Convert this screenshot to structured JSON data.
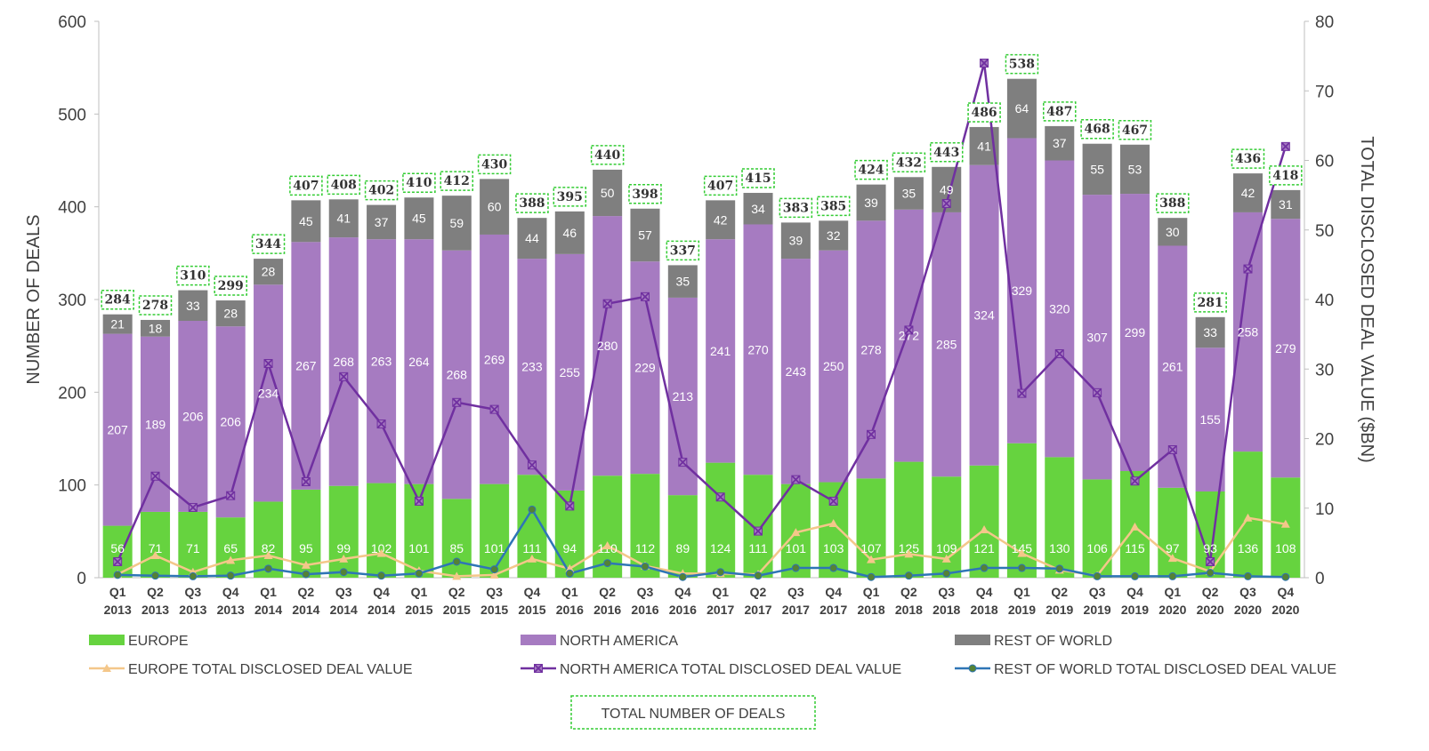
{
  "colors": {
    "europe": "#66d33f",
    "north_america": "#a67bc1",
    "rest_of_world": "#7f7f7f",
    "europe_line": "#f4c78a",
    "north_america_line": "#7030a0",
    "rest_of_world_line": "#2e75b6",
    "total_box": "#33cc33"
  },
  "chart_data": {
    "type": "bar",
    "stacked": true,
    "categories": [
      {
        "q": "Q1",
        "y": "2013"
      },
      {
        "q": "Q2",
        "y": "2013"
      },
      {
        "q": "Q3",
        "y": "2013"
      },
      {
        "q": "Q4",
        "y": "2013"
      },
      {
        "q": "Q1",
        "y": "2014"
      },
      {
        "q": "Q2",
        "y": "2014"
      },
      {
        "q": "Q3",
        "y": "2014"
      },
      {
        "q": "Q4",
        "y": "2014"
      },
      {
        "q": "Q1",
        "y": "2015"
      },
      {
        "q": "Q2",
        "y": "2015"
      },
      {
        "q": "Q3",
        "y": "2015"
      },
      {
        "q": "Q4",
        "y": "2015"
      },
      {
        "q": "Q1",
        "y": "2016"
      },
      {
        "q": "Q2",
        "y": "2016"
      },
      {
        "q": "Q3",
        "y": "2016"
      },
      {
        "q": "Q4",
        "y": "2016"
      },
      {
        "q": "Q1",
        "y": "2017"
      },
      {
        "q": "Q2",
        "y": "2017"
      },
      {
        "q": "Q3",
        "y": "2017"
      },
      {
        "q": "Q4",
        "y": "2017"
      },
      {
        "q": "Q1",
        "y": "2018"
      },
      {
        "q": "Q2",
        "y": "2018"
      },
      {
        "q": "Q3",
        "y": "2018"
      },
      {
        "q": "Q4",
        "y": "2018"
      },
      {
        "q": "Q1",
        "y": "2019"
      },
      {
        "q": "Q2",
        "y": "2019"
      },
      {
        "q": "Q3",
        "y": "2019"
      },
      {
        "q": "Q4",
        "y": "2019"
      },
      {
        "q": "Q1",
        "y": "2020"
      },
      {
        "q": "Q2",
        "y": "2020"
      },
      {
        "q": "Q3",
        "y": "2020"
      },
      {
        "q": "Q4",
        "y": "2020"
      }
    ],
    "bar_series": [
      {
        "name": "EUROPE",
        "color_key": "europe",
        "values": [
          56,
          71,
          71,
          65,
          82,
          95,
          99,
          102,
          101,
          85,
          101,
          111,
          94,
          110,
          112,
          89,
          124,
          111,
          101,
          103,
          107,
          125,
          109,
          121,
          145,
          130,
          106,
          115,
          97,
          93,
          136,
          108
        ]
      },
      {
        "name": "NORTH AMERICA",
        "color_key": "north_america",
        "values": [
          207,
          189,
          206,
          206,
          234,
          267,
          268,
          263,
          264,
          268,
          269,
          233,
          255,
          280,
          229,
          213,
          241,
          270,
          243,
          250,
          278,
          272,
          285,
          324,
          329,
          320,
          307,
          299,
          261,
          155,
          258,
          279
        ]
      },
      {
        "name": "REST OF WORLD",
        "color_key": "rest_of_world",
        "values": [
          21,
          18,
          33,
          28,
          28,
          45,
          41,
          37,
          45,
          59,
          60,
          44,
          46,
          50,
          57,
          35,
          42,
          34,
          39,
          32,
          39,
          35,
          49,
          41,
          64,
          37,
          55,
          53,
          30,
          33,
          42,
          31
        ]
      }
    ],
    "totals_name": "TOTAL NUMBER OF DEALS",
    "totals": [
      284,
      278,
      310,
      299,
      344,
      407,
      408,
      402,
      410,
      412,
      430,
      388,
      395,
      440,
      398,
      337,
      407,
      415,
      383,
      385,
      424,
      432,
      443,
      486,
      538,
      487,
      468,
      467,
      388,
      281,
      436,
      418
    ],
    "line_series": [
      {
        "name": "EUROPE TOTAL DISCLOSED DEAL VALUE",
        "color_key": "europe_line",
        "marker": "triangle",
        "values": [
          0.5,
          3.2,
          0.8,
          2.5,
          3.2,
          1.8,
          2.7,
          3.5,
          1.0,
          0.2,
          0.4,
          2.7,
          1.3,
          4.6,
          1.7,
          0.6,
          0.6,
          0.5,
          6.5,
          7.8,
          2.6,
          3.4,
          2.7,
          6.9,
          3.5,
          1.1,
          0.3,
          7.3,
          2.8,
          0.9,
          8.6,
          7.7
        ]
      },
      {
        "name": "NORTH AMERICA TOTAL DISCLOSED DEAL VALUE",
        "color_key": "north_america_line",
        "marker": "x",
        "values": [
          2.3,
          14.6,
          10.1,
          11.8,
          30.8,
          13.8,
          28.9,
          22.1,
          11.0,
          25.2,
          24.2,
          16.2,
          10.3,
          39.4,
          40.4,
          16.6,
          11.6,
          6.7,
          14.1,
          11.0,
          20.6,
          35.6,
          53.8,
          74.0,
          26.5,
          32.2,
          26.6,
          13.9,
          18.4,
          2.3,
          44.4,
          62.0
        ]
      },
      {
        "name": "REST OF WORLD TOTAL DISCLOSED DEAL VALUE",
        "color_key": "rest_of_world_line",
        "marker": "circle",
        "values": [
          0.4,
          0.3,
          0.2,
          0.3,
          1.3,
          0.5,
          0.8,
          0.3,
          0.6,
          2.3,
          1.2,
          9.8,
          0.6,
          2.1,
          1.6,
          0.1,
          0.8,
          0.3,
          1.4,
          1.4,
          0.1,
          0.3,
          0.6,
          1.4,
          1.4,
          1.3,
          0.2,
          0.2,
          0.2,
          0.7,
          0.2,
          0.1
        ]
      }
    ],
    "y_left": {
      "label": "NUMBER OF DEALS",
      "min": 0,
      "max": 600,
      "ticks": [
        0,
        100,
        200,
        300,
        400,
        500,
        600
      ]
    },
    "y_right": {
      "label": "TOTAL DISCLOSED DEAL VALUE ($BN)",
      "min": 0,
      "max": 80,
      "ticks": [
        0,
        10,
        20,
        30,
        40,
        50,
        60,
        70,
        80
      ]
    },
    "grid": false,
    "legend_position": "bottom"
  }
}
